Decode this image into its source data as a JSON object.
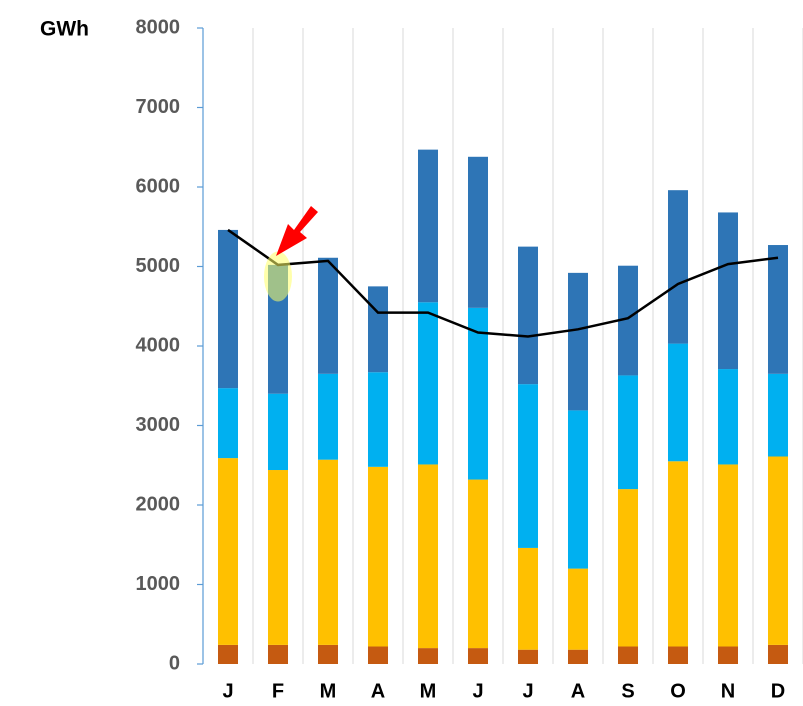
{
  "chart_data": {
    "type": "bar",
    "stacked": true,
    "y_label": "GWh",
    "categories": [
      "J",
      "F",
      "M",
      "A",
      "M",
      "J",
      "J",
      "A",
      "S",
      "O",
      "N",
      "D"
    ],
    "series": [
      {
        "color": "#c55a11",
        "values": [
          240,
          240,
          240,
          220,
          200,
          200,
          180,
          180,
          220,
          220,
          220,
          240
        ]
      },
      {
        "color": "#ffc000",
        "values": [
          2350,
          2200,
          2330,
          2260,
          2310,
          2120,
          1280,
          1020,
          1980,
          2330,
          2290,
          2370
        ]
      },
      {
        "color": "#00b0f0",
        "values": [
          880,
          960,
          1080,
          1190,
          2040,
          2160,
          2060,
          1990,
          1430,
          1480,
          1200,
          1040
        ]
      },
      {
        "color": "#2e75b6",
        "values": [
          1990,
          1620,
          1460,
          1080,
          1920,
          1900,
          1730,
          1730,
          1380,
          1930,
          1970,
          1620
        ]
      }
    ],
    "line_series": {
      "color": "#000000",
      "values": [
        5460,
        5020,
        5070,
        4420,
        4420,
        4170,
        4120,
        4210,
        4350,
        4780,
        5030,
        5110
      ]
    },
    "ylim": [
      0,
      8000
    ],
    "yticks": [
      0,
      1000,
      2000,
      3000,
      4000,
      5000,
      6000,
      7000,
      8000
    ],
    "grid": "x"
  }
}
